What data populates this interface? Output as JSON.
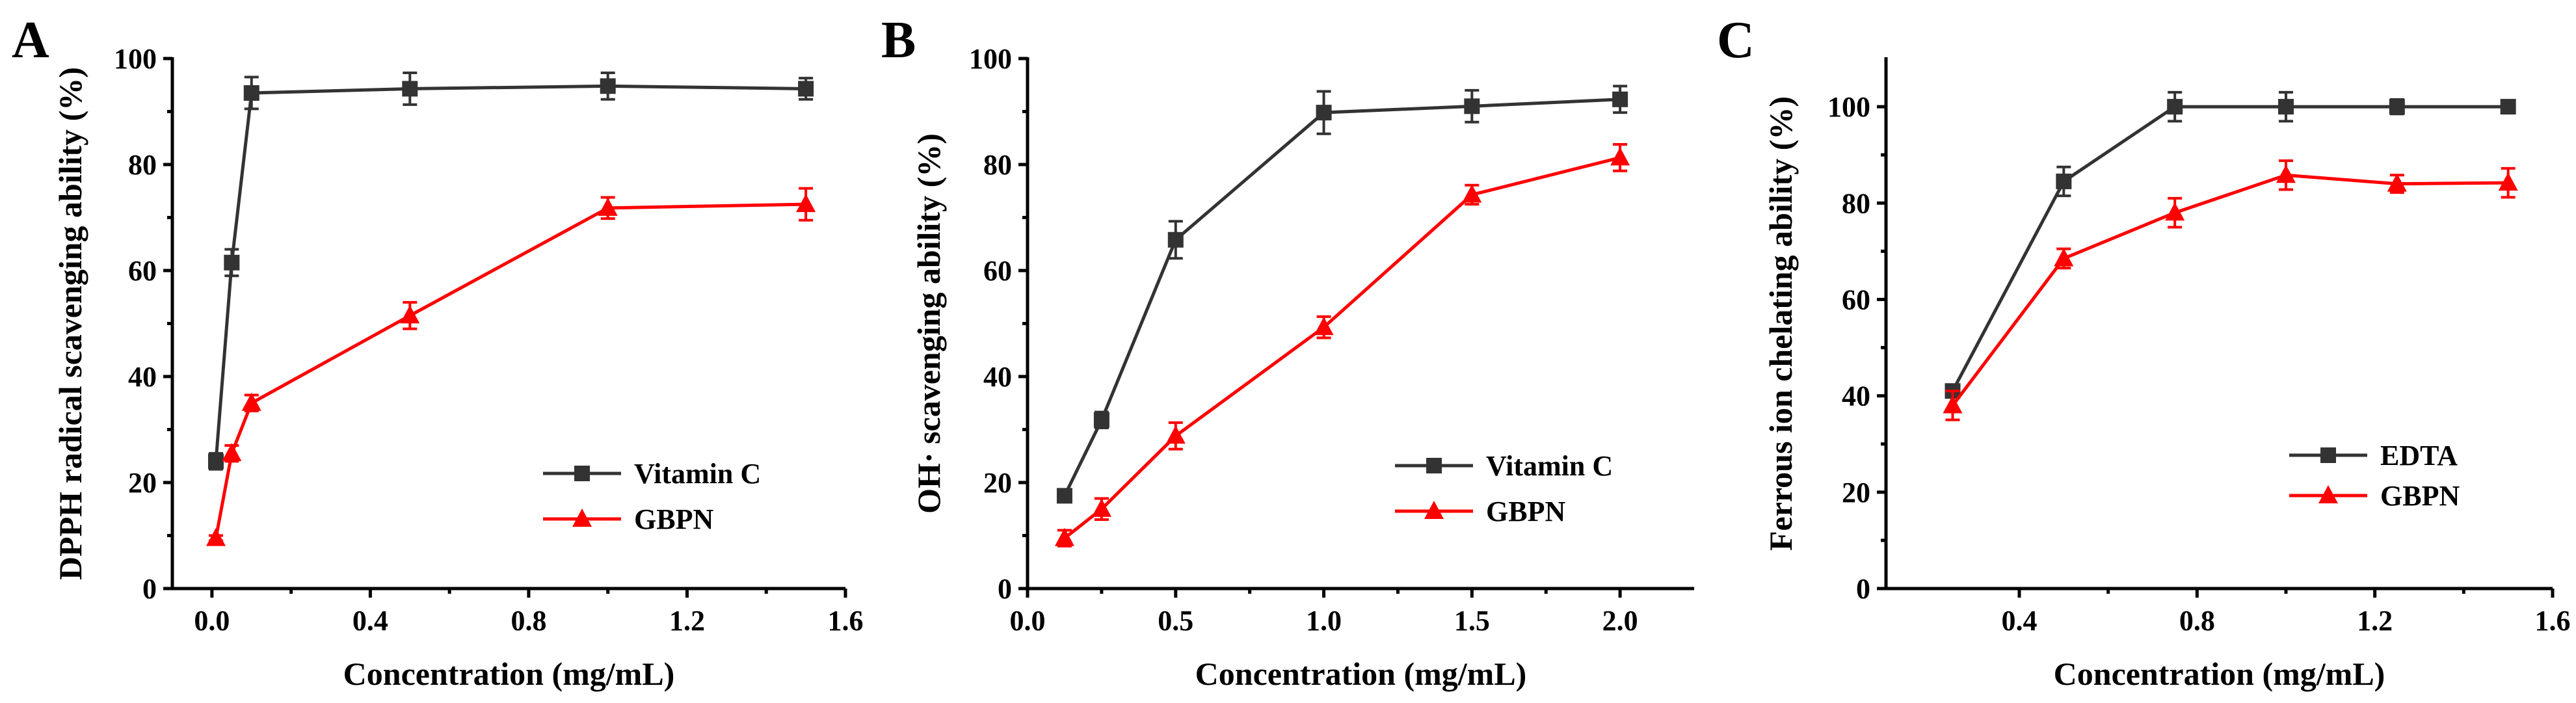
{
  "figure": {
    "panels": [
      "A",
      "B",
      "C"
    ]
  },
  "chart_data": [
    {
      "panel_label": "A",
      "type": "line",
      "xlabel": "Concentration (mg/mL)",
      "ylabel": "DPPH radical scavenging ability (%)",
      "xlim": [
        -0.1,
        1.6
      ],
      "ylim": [
        0,
        100
      ],
      "xticks": [
        0.0,
        0.4,
        0.8,
        1.2,
        1.6
      ],
      "yticks": [
        0,
        20,
        40,
        60,
        80,
        100
      ],
      "xtick_labels": [
        "0.0",
        "0.4",
        "0.8",
        "1.2",
        "1.6"
      ],
      "ytick_labels": [
        "0",
        "20",
        "40",
        "60",
        "80",
        "100"
      ],
      "legend_position": "bottom-right",
      "series": [
        {
          "name": "Vitamin C",
          "color": "#333333",
          "marker": "square",
          "x": [
            0.01,
            0.05,
            0.1,
            0.5,
            1.0,
            1.5
          ],
          "y": [
            24,
            61.5,
            93.5,
            94.3,
            94.8,
            94.3
          ],
          "err": [
            1.5,
            2.5,
            3,
            3,
            2.5,
            2
          ]
        },
        {
          "name": "GBPN",
          "color": "#ff0000",
          "marker": "triangle",
          "x": [
            0.01,
            0.05,
            0.1,
            0.5,
            1.0,
            1.5
          ],
          "y": [
            9.5,
            25.5,
            35,
            51.5,
            71.8,
            72.5
          ],
          "err": [
            0.5,
            1.5,
            1.5,
            2.5,
            2,
            3
          ]
        }
      ]
    },
    {
      "panel_label": "B",
      "type": "line",
      "xlabel": "Concentration (mg/mL)",
      "ylabel": "OH· scavenging ability (%)",
      "xlim": [
        0,
        2.25
      ],
      "ylim": [
        0,
        100
      ],
      "xticks": [
        0.0,
        0.5,
        1.0,
        1.5,
        2.0
      ],
      "yticks": [
        0,
        20,
        40,
        60,
        80,
        100
      ],
      "xtick_labels": [
        "0.0",
        "0.5",
        "1.0",
        "1.5",
        "2.0"
      ],
      "ytick_labels": [
        "0",
        "20",
        "40",
        "60",
        "80",
        "100"
      ],
      "legend_position": "bottom-right",
      "series": [
        {
          "name": "Vitamin C",
          "color": "#333333",
          "marker": "square",
          "x": [
            0.125,
            0.25,
            0.5,
            1.0,
            1.5,
            2.0
          ],
          "y": [
            17.5,
            31.8,
            65.8,
            89.8,
            91,
            92.3
          ],
          "err": [
            1,
            1.5,
            3.5,
            4,
            3,
            2.5
          ]
        },
        {
          "name": "GBPN",
          "color": "#ff0000",
          "marker": "triangle",
          "x": [
            0.125,
            0.25,
            0.5,
            1.0,
            1.5,
            2.0
          ],
          "y": [
            9.5,
            15,
            28.8,
            49.3,
            74.3,
            81.3
          ],
          "err": [
            1.5,
            2,
            2.5,
            2,
            1.8,
            2.5
          ]
        }
      ]
    },
    {
      "panel_label": "C",
      "type": "line",
      "xlabel": "Concentration (mg/mL)",
      "ylabel": "Ferrous ion chelating ability (%)",
      "xlim": [
        0.1,
        1.6
      ],
      "ylim": [
        0,
        110
      ],
      "xticks": [
        0.4,
        0.8,
        1.2,
        1.6
      ],
      "yticks": [
        0,
        20,
        40,
        60,
        80,
        100
      ],
      "xtick_labels": [
        "0.4",
        "0.8",
        "1.2",
        "1.6"
      ],
      "ytick_labels": [
        "0",
        "20",
        "40",
        "60",
        "80",
        "100"
      ],
      "legend_position": "bottom-right",
      "series": [
        {
          "name": "EDTA",
          "color": "#333333",
          "marker": "square",
          "x": [
            0.25,
            0.5,
            0.75,
            1.0,
            1.25,
            1.5
          ],
          "y": [
            41,
            84.5,
            100,
            100,
            100,
            100
          ],
          "err": [
            1,
            3,
            3,
            3,
            1.5,
            1
          ]
        },
        {
          "name": "GBPN",
          "color": "#ff0000",
          "marker": "triangle",
          "x": [
            0.25,
            0.5,
            0.75,
            1.0,
            1.25,
            1.5
          ],
          "y": [
            38,
            68.5,
            78,
            85.8,
            84,
            84.2
          ],
          "err": [
            3,
            2,
            3,
            3,
            1.8,
            3
          ]
        }
      ]
    }
  ]
}
